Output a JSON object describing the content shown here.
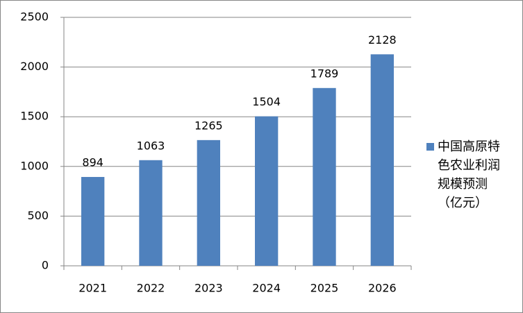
{
  "chart_data": {
    "type": "bar",
    "categories": [
      "2021",
      "2022",
      "2023",
      "2024",
      "2025",
      "2026"
    ],
    "series": [
      {
        "name": "中国高原特色农业利润规模预测（亿元）",
        "color": "#4f81bd",
        "values": [
          894,
          1063,
          1265,
          1504,
          1789,
          2128
        ]
      }
    ],
    "ylim": [
      0,
      2500
    ],
    "yticks": [
      0,
      500,
      1000,
      1500,
      2000,
      2500
    ],
    "grid": true,
    "legend": "right"
  }
}
